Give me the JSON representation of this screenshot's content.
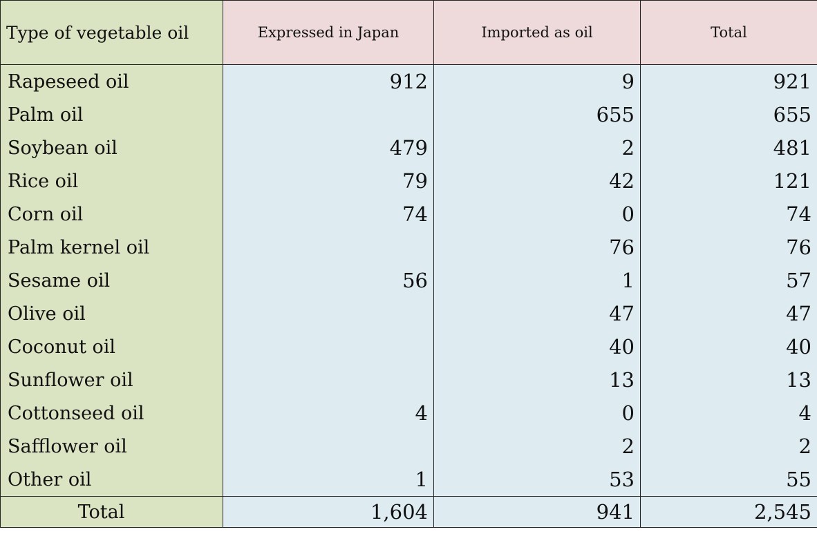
{
  "table": {
    "headers": {
      "type": "Type of vegetable oil",
      "expressed": "Expressed in Japan",
      "imported": "Imported as oil",
      "total": "Total"
    },
    "rows": [
      {
        "type": "Rapeseed oil",
        "expressed": "912",
        "imported": "9",
        "total": "921"
      },
      {
        "type": "Palm oil",
        "expressed": "",
        "imported": "655",
        "total": "655"
      },
      {
        "type": "Soybean oil",
        "expressed": "479",
        "imported": "2",
        "total": "481"
      },
      {
        "type": "Rice oil",
        "expressed": "79",
        "imported": "42",
        "total": "121"
      },
      {
        "type": "Corn oil",
        "expressed": "74",
        "imported": "0",
        "total": "74"
      },
      {
        "type": "Palm kernel oil",
        "expressed": "",
        "imported": "76",
        "total": "76"
      },
      {
        "type": "Sesame oil",
        "expressed": "56",
        "imported": "1",
        "total": "57"
      },
      {
        "type": "Olive oil",
        "expressed": "",
        "imported": "47",
        "total": "47"
      },
      {
        "type": "Coconut oil",
        "expressed": "",
        "imported": "40",
        "total": "40"
      },
      {
        "type": "Sunflower oil",
        "expressed": "",
        "imported": "13",
        "total": "13"
      },
      {
        "type": "Cottonseed oil",
        "expressed": "4",
        "imported": "0",
        "total": "4"
      },
      {
        "type": "Safflower oil",
        "expressed": "",
        "imported": "2",
        "total": "2"
      },
      {
        "type": "Other oil",
        "expressed": "1",
        "imported": "53",
        "total": "55"
      }
    ],
    "total_row": {
      "label": "Total",
      "expressed": "1,604",
      "imported": "941",
      "total": "2,545"
    }
  }
}
